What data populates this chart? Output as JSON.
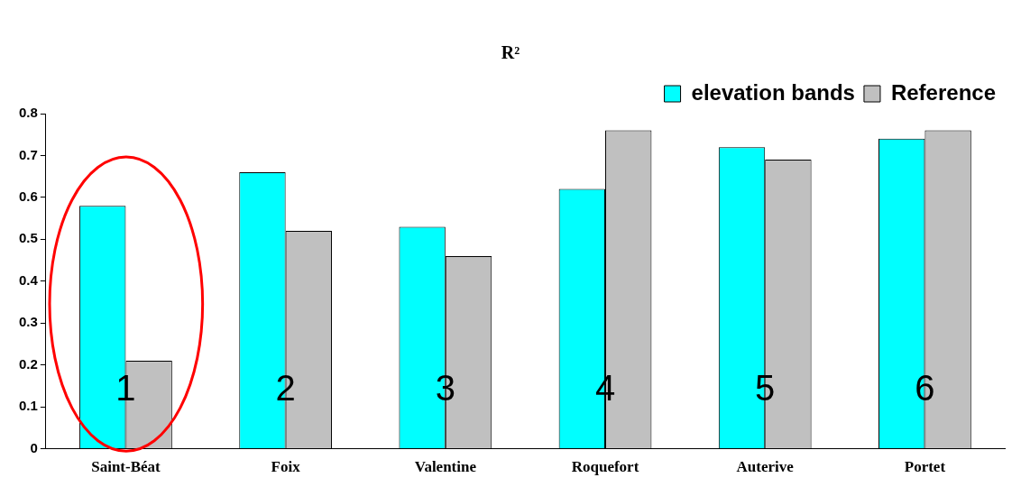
{
  "chart_data": {
    "type": "bar",
    "title": "R²",
    "categories": [
      "Saint-Béat",
      "Foix",
      "Valentine",
      "Roquefort",
      "Auterive",
      "Portet"
    ],
    "series": [
      {
        "name": "elevation bands",
        "color": "#00ffff",
        "values": [
          0.58,
          0.66,
          0.53,
          0.62,
          0.72,
          0.74
        ]
      },
      {
        "name": "Reference",
        "color": "#c0c0c0",
        "values": [
          0.21,
          0.52,
          0.46,
          0.76,
          0.69,
          0.76
        ]
      }
    ],
    "ylim": [
      0,
      0.8
    ],
    "yticks": [
      0,
      0.1,
      0.2,
      0.3,
      0.4,
      0.5,
      0.6,
      0.7,
      0.8
    ],
    "grid": false,
    "legend": "top right",
    "annotations": [
      {
        "text": "1",
        "x": "Saint-Béat",
        "y": 0.14
      },
      {
        "text": "2",
        "x": "Foix",
        "y": 0.14
      },
      {
        "text": "3",
        "x": "Valentine",
        "y": 0.14
      },
      {
        "text": "4",
        "x": "Roquefort",
        "y": 0.14
      },
      {
        "text": "5",
        "x": "Auterive",
        "y": 0.14
      },
      {
        "text": "6",
        "x": "Portet",
        "y": 0.14
      }
    ]
  }
}
